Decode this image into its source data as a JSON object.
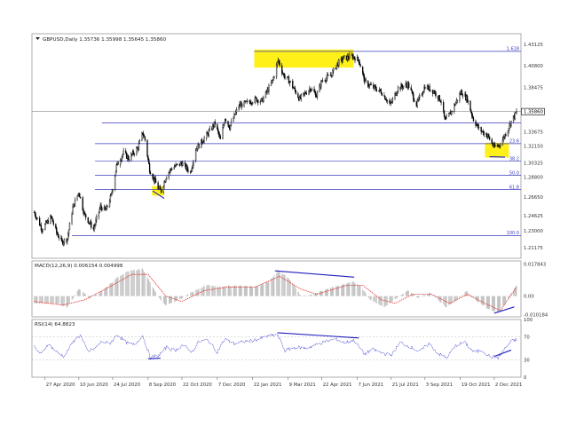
{
  "chart_data": [
    {
      "type": "candlestick",
      "panel": "price",
      "header": "GBPUSD,Daily  1.35736 1.35998 1.35645 1.35860",
      "symbol": "GBPUSD",
      "timeframe": "Daily",
      "ohlc": {
        "open": 1.35736,
        "high": 1.35998,
        "low": 1.35645,
        "close": 1.3586
      },
      "price_ticks": [
        1.43125,
        1.408,
        1.38475,
        1.36025,
        1.33675,
        1.3215,
        1.30325,
        1.288,
        1.2665,
        1.24625,
        1.23,
        1.21175
      ],
      "price_tick_labels": [
        "1.43125",
        "1.40800",
        "1.38475",
        "1.36025",
        "1.33675",
        "1.32150",
        "1.30325",
        "1.28800",
        "1.26650",
        "1.24625",
        "1.23000",
        "1.21175"
      ],
      "current_price_label": "1.35860",
      "ylim": [
        1.2005,
        1.4425
      ],
      "fibonacci_levels": [
        {
          "label": "1.618",
          "price": 1.4235
        },
        {
          "label": "23.6",
          "price": 1.324
        },
        {
          "label": "38.2",
          "price": 1.3052
        },
        {
          "label": "50.0",
          "price": 1.28985
        },
        {
          "label": "61.8",
          "price": 1.2746
        },
        {
          "label": "100.0",
          "price": 1.225
        }
      ],
      "extra_horizontal_line": 1.3465,
      "highlight_zones": [
        {
          "date_from": "2020-09-13",
          "date_to": "2020-09-29",
          "price_from": 1.268,
          "price_to": 1.2782
        },
        {
          "date_from": "2021-01-24",
          "date_to": "2021-06-02",
          "price_from": 1.406,
          "price_to": 1.4255
        },
        {
          "date_from": "2021-11-20",
          "date_to": "2021-12-21",
          "price_from": 1.309,
          "price_to": 1.325
        }
      ],
      "trend_lines": [
        {
          "from": [
            "2020-09-14",
            1.273
          ],
          "to": [
            "2020-09-29",
            1.265
          ]
        },
        {
          "from": [
            "2021-11-26",
            1.31
          ],
          "to": [
            "2021-12-16",
            1.3095
          ]
        }
      ],
      "x_tick_labels": [
        "27 Apr 2020",
        "10 Jun 2020",
        "24 Jul 2020",
        "8 Sep 2020",
        "22 Oct 2020",
        "7 Dec 2020",
        "22 Jan 2021",
        "9 Mar 2021",
        "22 Apr 2021",
        "7 Jun 2021",
        "21 Jul 2021",
        "3 Sep 2021",
        "19 Oct 2021",
        "2 Dec 2021"
      ],
      "x_tick_dates": [
        "2020-04-27",
        "2020-06-10",
        "2020-07-24",
        "2020-09-08",
        "2020-10-22",
        "2020-12-07",
        "2021-01-22",
        "2021-03-09",
        "2021-04-22",
        "2021-06-07",
        "2021-07-21",
        "2021-09-03",
        "2021-10-19",
        "2021-12-02"
      ],
      "xlim": [
        "2020-04-10",
        "2021-12-31"
      ],
      "close_path": [
        [
          "2020-04-13",
          1.25
        ],
        [
          "2020-04-23",
          1.232
        ],
        [
          "2020-05-05",
          1.245
        ],
        [
          "2020-05-12",
          1.228
        ],
        [
          "2020-05-19",
          1.218
        ],
        [
          "2020-05-26",
          1.222
        ],
        [
          "2020-06-02",
          1.255
        ],
        [
          "2020-06-10",
          1.272
        ],
        [
          "2020-06-17",
          1.248
        ],
        [
          "2020-06-29",
          1.232
        ],
        [
          "2020-07-08",
          1.256
        ],
        [
          "2020-07-15",
          1.252
        ],
        [
          "2020-07-22",
          1.268
        ],
        [
          "2020-07-29",
          1.3
        ],
        [
          "2020-08-07",
          1.314
        ],
        [
          "2020-08-14",
          1.308
        ],
        [
          "2020-08-26",
          1.32
        ],
        [
          "2020-09-01",
          1.336
        ],
        [
          "2020-09-04",
          1.328
        ],
        [
          "2020-09-10",
          1.296
        ],
        [
          "2020-09-21",
          1.276
        ],
        [
          "2020-09-25",
          1.273
        ],
        [
          "2020-10-02",
          1.29
        ],
        [
          "2020-10-09",
          1.298
        ],
        [
          "2020-10-22",
          1.303
        ],
        [
          "2020-11-02",
          1.293
        ],
        [
          "2020-11-09",
          1.318
        ],
        [
          "2020-11-23",
          1.333
        ],
        [
          "2020-12-04",
          1.346
        ],
        [
          "2020-12-11",
          1.328
        ],
        [
          "2020-12-17",
          1.352
        ],
        [
          "2020-12-23",
          1.342
        ],
        [
          "2021-01-04",
          1.365
        ],
        [
          "2021-01-15",
          1.368
        ],
        [
          "2021-01-26",
          1.372
        ],
        [
          "2021-02-03",
          1.37
        ],
        [
          "2021-02-17",
          1.392
        ],
        [
          "2021-02-24",
          1.414
        ],
        [
          "2021-03-03",
          1.398
        ],
        [
          "2021-03-12",
          1.39
        ],
        [
          "2021-03-24",
          1.372
        ],
        [
          "2021-04-07",
          1.384
        ],
        [
          "2021-04-15",
          1.376
        ],
        [
          "2021-04-22",
          1.392
        ],
        [
          "2021-05-04",
          1.398
        ],
        [
          "2021-05-12",
          1.41
        ],
        [
          "2021-05-20",
          1.416
        ],
        [
          "2021-06-01",
          1.418
        ],
        [
          "2021-06-09",
          1.414
        ],
        [
          "2021-06-17",
          1.39
        ],
        [
          "2021-06-25",
          1.386
        ],
        [
          "2021-07-08",
          1.38
        ],
        [
          "2021-07-20",
          1.366
        ],
        [
          "2021-07-30",
          1.384
        ],
        [
          "2021-08-12",
          1.388
        ],
        [
          "2021-08-23",
          1.366
        ],
        [
          "2021-09-03",
          1.386
        ],
        [
          "2021-09-15",
          1.38
        ],
        [
          "2021-09-24",
          1.37
        ],
        [
          "2021-09-29",
          1.348
        ],
        [
          "2021-10-08",
          1.36
        ],
        [
          "2021-10-20",
          1.38
        ],
        [
          "2021-10-28",
          1.372
        ],
        [
          "2021-11-05",
          1.35
        ],
        [
          "2021-11-12",
          1.34
        ],
        [
          "2021-11-24",
          1.332
        ],
        [
          "2021-12-02",
          1.32
        ],
        [
          "2021-12-08",
          1.322
        ],
        [
          "2021-12-14",
          1.33
        ],
        [
          "2021-12-20",
          1.34
        ],
        [
          "2021-12-24",
          1.348
        ],
        [
          "2021-12-31",
          1.358
        ]
      ]
    },
    {
      "type": "histogram",
      "panel": "macd",
      "header": "MACD(12,26,9) 0.006154 0.004998",
      "main": 0.006154,
      "signal": 0.004998,
      "tick_labels": [
        "0.017843",
        "0.00",
        "-0.010184"
      ],
      "ylim": [
        -0.0115,
        0.0195
      ],
      "values_path": [
        [
          "2020-04-13",
          -0.004
        ],
        [
          "2020-05-12",
          -0.004
        ],
        [
          "2020-05-26",
          -0.006
        ],
        [
          "2020-06-10",
          0.004
        ],
        [
          "2020-06-24",
          -0.001
        ],
        [
          "2020-07-08",
          0.002
        ],
        [
          "2020-07-29",
          0.01
        ],
        [
          "2020-08-14",
          0.014
        ],
        [
          "2020-09-01",
          0.015
        ],
        [
          "2020-09-21",
          0.0
        ],
        [
          "2020-09-30",
          -0.005
        ],
        [
          "2020-10-14",
          -0.003
        ],
        [
          "2020-11-03",
          0.002
        ],
        [
          "2020-11-23",
          0.006
        ],
        [
          "2020-12-11",
          0.005
        ],
        [
          "2020-12-31",
          0.006
        ],
        [
          "2021-01-25",
          0.005
        ],
        [
          "2021-02-12",
          0.008
        ],
        [
          "2021-02-24",
          0.014
        ],
        [
          "2021-03-10",
          0.01
        ],
        [
          "2021-03-26",
          0.0
        ],
        [
          "2021-04-12",
          0.001
        ],
        [
          "2021-04-28",
          0.004
        ],
        [
          "2021-05-15",
          0.006
        ],
        [
          "2021-06-01",
          0.008
        ],
        [
          "2021-06-10",
          0.006
        ],
        [
          "2021-06-24",
          -0.002
        ],
        [
          "2021-07-12",
          -0.006
        ],
        [
          "2021-07-22",
          -0.003
        ],
        [
          "2021-08-12",
          0.003
        ],
        [
          "2021-08-25",
          -0.001
        ],
        [
          "2021-09-10",
          0.002
        ],
        [
          "2021-09-30",
          -0.006
        ],
        [
          "2021-10-15",
          -0.002
        ],
        [
          "2021-10-27",
          0.003
        ],
        [
          "2021-11-10",
          -0.003
        ],
        [
          "2021-11-24",
          -0.007
        ],
        [
          "2021-12-06",
          -0.009
        ],
        [
          "2021-12-16",
          -0.004
        ],
        [
          "2021-12-31",
          0.0062
        ]
      ],
      "signal_path": [
        [
          "2020-04-13",
          -0.003
        ],
        [
          "2020-05-20",
          -0.005
        ],
        [
          "2020-06-18",
          -0.002
        ],
        [
          "2020-07-15",
          0.004
        ],
        [
          "2020-08-18",
          0.012
        ],
        [
          "2020-09-08",
          0.012
        ],
        [
          "2020-10-01",
          0.0
        ],
        [
          "2020-10-22",
          -0.003
        ],
        [
          "2020-11-20",
          0.003
        ],
        [
          "2020-12-20",
          0.005
        ],
        [
          "2021-01-25",
          0.005
        ],
        [
          "2021-02-26",
          0.011
        ],
        [
          "2021-03-25",
          0.004
        ],
        [
          "2021-04-15",
          0.001
        ],
        [
          "2021-05-25",
          0.006
        ],
        [
          "2021-06-14",
          0.006
        ],
        [
          "2021-07-08",
          -0.002
        ],
        [
          "2021-07-26",
          -0.004
        ],
        [
          "2021-08-18",
          0.001
        ],
        [
          "2021-09-12",
          0.001
        ],
        [
          "2021-10-05",
          -0.004
        ],
        [
          "2021-10-28",
          0.001
        ],
        [
          "2021-11-20",
          -0.004
        ],
        [
          "2021-12-10",
          -0.008
        ],
        [
          "2021-12-31",
          0.004998
        ]
      ],
      "divergence_lines": [
        {
          "from": [
            "2021-02-20",
            0.014
          ],
          "to": [
            "2021-06-03",
            0.0105
          ]
        },
        {
          "from": [
            "2021-12-02",
            -0.0095
          ],
          "to": [
            "2021-12-28",
            -0.006
          ]
        }
      ]
    },
    {
      "type": "line",
      "panel": "rsi",
      "header": "RSI(14) 64.8823",
      "value": 64.8823,
      "tick_labels": [
        "100",
        "70",
        "30",
        "0"
      ],
      "ylim": [
        0,
        100
      ],
      "levels": [
        70,
        30
      ],
      "values_path": [
        [
          "2020-04-13",
          52
        ],
        [
          "2020-04-22",
          40
        ],
        [
          "2020-05-01",
          58
        ],
        [
          "2020-05-12",
          44
        ],
        [
          "2020-05-22",
          36
        ],
        [
          "2020-06-05",
          66
        ],
        [
          "2020-06-12",
          72
        ],
        [
          "2020-06-22",
          44
        ],
        [
          "2020-07-01",
          50
        ],
        [
          "2020-07-10",
          62
        ],
        [
          "2020-07-20",
          58
        ],
        [
          "2020-07-30",
          74
        ],
        [
          "2020-08-10",
          60
        ],
        [
          "2020-08-21",
          56
        ],
        [
          "2020-09-01",
          72
        ],
        [
          "2020-09-11",
          34
        ],
        [
          "2020-09-22",
          38
        ],
        [
          "2020-10-02",
          52
        ],
        [
          "2020-10-13",
          46
        ],
        [
          "2020-10-23",
          56
        ],
        [
          "2020-11-04",
          44
        ],
        [
          "2020-11-13",
          62
        ],
        [
          "2020-11-25",
          64
        ],
        [
          "2020-12-07",
          44
        ],
        [
          "2020-12-17",
          66
        ],
        [
          "2020-12-29",
          58
        ],
        [
          "2021-01-12",
          62
        ],
        [
          "2021-01-25",
          64
        ],
        [
          "2021-02-08",
          70
        ],
        [
          "2021-02-23",
          74
        ],
        [
          "2021-03-05",
          46
        ],
        [
          "2021-03-19",
          52
        ],
        [
          "2021-04-01",
          50
        ],
        [
          "2021-04-14",
          56
        ],
        [
          "2021-04-27",
          62
        ],
        [
          "2021-05-10",
          66
        ],
        [
          "2021-05-21",
          60
        ],
        [
          "2021-06-03",
          64
        ],
        [
          "2021-06-16",
          40
        ],
        [
          "2021-06-28",
          48
        ],
        [
          "2021-07-09",
          42
        ],
        [
          "2021-07-21",
          38
        ],
        [
          "2021-08-02",
          60
        ],
        [
          "2021-08-16",
          52
        ],
        [
          "2021-08-27",
          44
        ],
        [
          "2021-09-08",
          58
        ],
        [
          "2021-09-21",
          40
        ],
        [
          "2021-10-01",
          34
        ],
        [
          "2021-10-14",
          56
        ],
        [
          "2021-10-25",
          60
        ],
        [
          "2021-11-05",
          44
        ],
        [
          "2021-11-17",
          46
        ],
        [
          "2021-11-26",
          36
        ],
        [
          "2021-12-07",
          34
        ],
        [
          "2021-12-16",
          50
        ],
        [
          "2021-12-24",
          62
        ],
        [
          "2021-12-31",
          64.88
        ]
      ],
      "divergence_lines": [
        {
          "from": [
            "2020-09-08",
            32
          ],
          "to": [
            "2020-09-24",
            33
          ]
        },
        {
          "from": [
            "2021-02-23",
            77
          ],
          "to": [
            "2021-06-09",
            68
          ]
        },
        {
          "from": [
            "2021-12-02",
            36
          ],
          "to": [
            "2021-12-24",
            47
          ]
        }
      ]
    }
  ]
}
